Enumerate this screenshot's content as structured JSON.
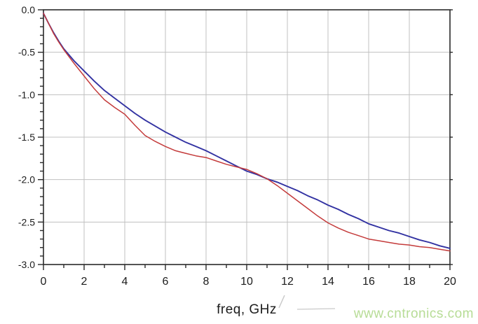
{
  "chart_data": {
    "type": "line",
    "title": "",
    "xlabel": "freq, GHz",
    "ylabel": "",
    "xlim": [
      0,
      20
    ],
    "ylim": [
      -3.0,
      0.0
    ],
    "grid": "major",
    "legend_position": "none",
    "x_tick_labels": [
      "0",
      "2",
      "4",
      "6",
      "8",
      "10",
      "12",
      "14",
      "16",
      "18",
      "20"
    ],
    "x_major_ticks": [
      0,
      2,
      4,
      6,
      8,
      10,
      12,
      14,
      16,
      18,
      20
    ],
    "x_minor_step": 1,
    "y_tick_labels": [
      "0.0",
      "-0.5",
      "-1.0",
      "-1.5",
      "-2.0",
      "-2.5",
      "-3.0"
    ],
    "y_major_ticks": [
      0,
      -0.5,
      -1.0,
      -1.5,
      -2.0,
      -2.5,
      -3.0
    ],
    "y_minor_step": 0.1,
    "x": [
      0,
      0.25,
      0.5,
      0.75,
      1,
      1.5,
      2,
      2.5,
      3,
      3.5,
      4,
      4.5,
      5,
      5.5,
      6,
      6.5,
      7,
      7.5,
      8,
      8.5,
      9,
      9.5,
      10,
      10.5,
      11,
      11.5,
      12,
      12.5,
      13,
      13.5,
      14,
      14.5,
      15,
      15.5,
      16,
      16.5,
      17,
      17.5,
      18,
      18.5,
      19,
      19.5,
      20
    ],
    "series": [
      {
        "name": "blue-curve",
        "color": "#3232a2",
        "width": 1.9,
        "values": [
          -0.04,
          -0.16,
          -0.27,
          -0.37,
          -0.46,
          -0.6,
          -0.72,
          -0.84,
          -0.95,
          -1.04,
          -1.13,
          -1.22,
          -1.3,
          -1.37,
          -1.44,
          -1.5,
          -1.56,
          -1.61,
          -1.66,
          -1.72,
          -1.78,
          -1.84,
          -1.9,
          -1.94,
          -1.99,
          -2.03,
          -2.08,
          -2.13,
          -2.19,
          -2.24,
          -2.3,
          -2.35,
          -2.41,
          -2.46,
          -2.52,
          -2.56,
          -2.6,
          -2.63,
          -2.67,
          -2.71,
          -2.74,
          -2.78,
          -2.81
        ]
      },
      {
        "name": "red-curve",
        "color": "#c43b3b",
        "width": 1.5,
        "values": [
          -0.04,
          -0.16,
          -0.28,
          -0.38,
          -0.47,
          -0.63,
          -0.78,
          -0.93,
          -1.06,
          -1.15,
          -1.23,
          -1.36,
          -1.48,
          -1.55,
          -1.61,
          -1.66,
          -1.69,
          -1.72,
          -1.74,
          -1.78,
          -1.82,
          -1.85,
          -1.88,
          -1.93,
          -1.99,
          -2.07,
          -2.16,
          -2.25,
          -2.34,
          -2.43,
          -2.51,
          -2.57,
          -2.62,
          -2.66,
          -2.7,
          -2.72,
          -2.74,
          -2.76,
          -2.77,
          -2.79,
          -2.8,
          -2.82,
          -2.84
        ]
      }
    ],
    "watermark": "www.cntronics.com",
    "colors": {
      "background": "#ffffff",
      "frame": "#2a2a2a",
      "grid": "#c0c0c0",
      "tick_label": "#1c1c1c",
      "watermark_green": "#b7dc96",
      "artifact_gray": "#c9c9c9"
    }
  }
}
